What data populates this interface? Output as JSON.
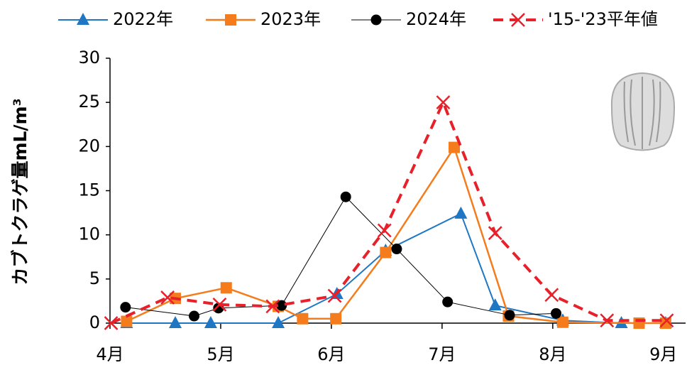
{
  "chart_data": {
    "type": "line",
    "y_label": "カブトクラゲ量mL/m³",
    "xlim": [
      4,
      9.2
    ],
    "ylim": [
      0,
      30
    ],
    "xticks": [
      {
        "value": 4,
        "label": "4月"
      },
      {
        "value": 5,
        "label": "5月"
      },
      {
        "value": 6,
        "label": "6月"
      },
      {
        "value": 7,
        "label": "7月"
      },
      {
        "value": 8,
        "label": "8月"
      },
      {
        "value": 9,
        "label": "9月"
      }
    ],
    "yticks": [
      0,
      5,
      10,
      15,
      20,
      25,
      30
    ],
    "legend": "top",
    "series": [
      {
        "name": "2022年",
        "color": "#1f77c4",
        "marker": "triangle",
        "dash": false,
        "line_width": 2,
        "x": [
          4.15,
          4.59,
          4.91,
          5.52,
          6.05,
          6.49,
          7.17,
          7.48,
          8.09,
          8.62,
          9.02
        ],
        "values": [
          0,
          0,
          0,
          0,
          3.3,
          8.2,
          12.4,
          2,
          0.3,
          0,
          0
        ]
      },
      {
        "name": "2023年",
        "color": "#f57c1c",
        "marker": "square",
        "dash": false,
        "line_width": 2.5,
        "x": [
          4.15,
          4.59,
          5.05,
          5.52,
          5.74,
          6.04,
          6.49,
          7.11,
          7.6,
          8.09,
          8.78,
          9.02
        ],
        "values": [
          0.2,
          2.8,
          4,
          1.9,
          0.5,
          0.5,
          8,
          19.9,
          0.8,
          0.1,
          0,
          0
        ]
      },
      {
        "name": "2024年",
        "color": "#000000",
        "marker": "circle",
        "dash": false,
        "line_width": 1,
        "x": [
          4.14,
          4.76,
          4.98,
          5.55,
          6.13,
          6.59,
          7.05,
          7.61,
          8.03
        ],
        "values": [
          1.8,
          0.8,
          1.7,
          2,
          14.3,
          8.4,
          2.4,
          0.9,
          1.1
        ]
      },
      {
        "name": "'15-'23平年値",
        "color": "#e8202a",
        "marker": "x",
        "dash": true,
        "line_width": 4,
        "x": [
          4.01,
          4.52,
          4.99,
          5.47,
          6.03,
          6.48,
          7.01,
          7.48,
          7.99,
          8.49,
          9.03
        ],
        "values": [
          0,
          2.9,
          2.1,
          1.9,
          3.1,
          10.5,
          25,
          10.2,
          3.2,
          0.3,
          0.3
        ]
      }
    ]
  }
}
